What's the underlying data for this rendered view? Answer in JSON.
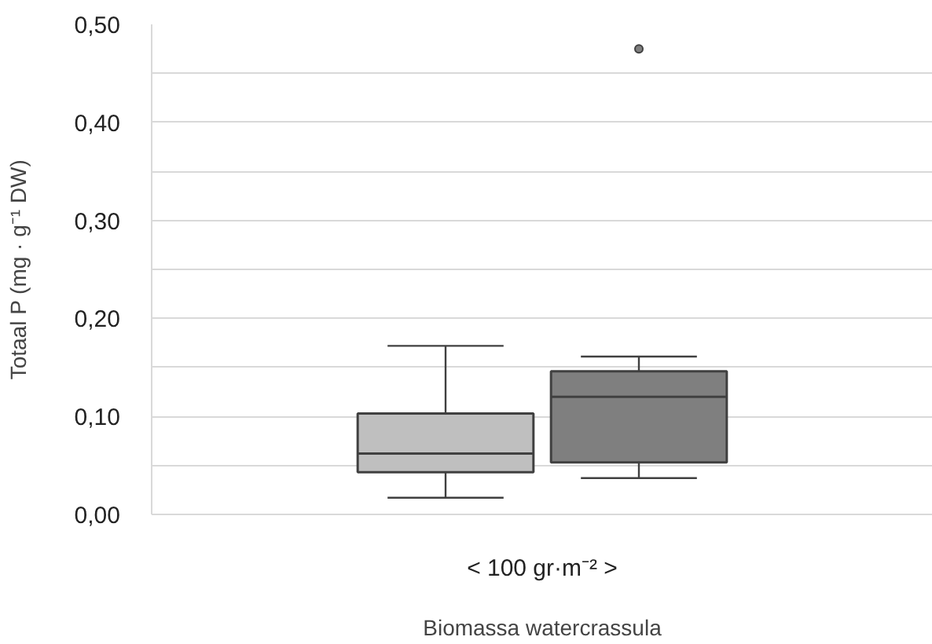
{
  "chart_data": {
    "type": "box",
    "categories": [
      "< 100 gr·m⁻² >"
    ],
    "xlabel": "Biomassa watercrassula",
    "ylabel": "Totaal P (mg · g⁻¹ DW)",
    "series": [
      {
        "color": "#bfbfbf",
        "boxes": [
          {
            "low": 0.017,
            "q1": 0.043,
            "median": 0.062,
            "q3": 0.103,
            "high": 0.172
          }
        ]
      },
      {
        "color": "#7f7f7f",
        "boxes": [
          {
            "low": 0.037,
            "q1": 0.053,
            "median": 0.12,
            "q3": 0.146,
            "high": 0.161,
            "outliers": [
              0.475
            ]
          }
        ]
      }
    ],
    "ylim": [
      0,
      0.5
    ],
    "yticks": [
      {
        "value": 0,
        "label": "0,00"
      },
      {
        "value": 0.05,
        "label": null
      },
      {
        "value": 0.1,
        "label": "0,10"
      },
      {
        "value": 0.15,
        "label": null
      },
      {
        "value": 0.2,
        "label": "0,20"
      },
      {
        "value": 0.25,
        "label": null
      },
      {
        "value": 0.3,
        "label": "0,30"
      },
      {
        "value": 0.35,
        "label": null
      },
      {
        "value": 0.4,
        "label": "0,40"
      },
      {
        "value": 0.45,
        "label": null
      },
      {
        "value": 0.5,
        "label": "0,50"
      }
    ],
    "grid": "y",
    "marker": "circle"
  }
}
